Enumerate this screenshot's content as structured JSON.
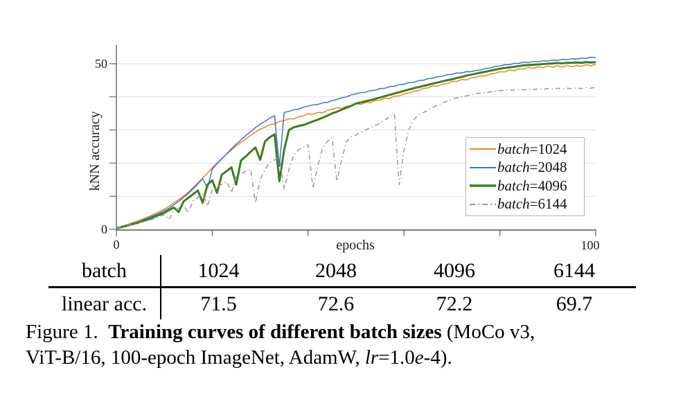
{
  "page": {
    "background": "#ffffff"
  },
  "chart_data": {
    "type": "line",
    "title": "",
    "xlabel": "epochs",
    "ylabel": "kNN accuracy",
    "xlim": [
      0,
      100
    ],
    "ylim": [
      0,
      55.5
    ],
    "x_ticks": [
      0,
      20,
      40,
      60,
      80,
      100
    ],
    "y_ticks": [
      0,
      10,
      20,
      30,
      40,
      50
    ],
    "x_tick_labels": [
      {
        "value": 0,
        "label": "0"
      },
      {
        "value": 100,
        "label": "100"
      }
    ],
    "y_tick_labels": [
      {
        "value": 0,
        "label": "0"
      },
      {
        "value": 50,
        "label": "50"
      }
    ],
    "grid": "horizontal",
    "legend_position": "lower-right-inside",
    "x_start": 0,
    "x_step": 1,
    "series": [
      {
        "name": "batch=1024",
        "color": "#E8861B",
        "width": 1.5,
        "dash": "solid",
        "values": [
          0.5,
          0.9,
          1.3,
          1.8,
          2.3,
          2.8,
          3.4,
          4.0,
          4.7,
          5.4,
          6.1,
          7.0,
          8.0,
          9.0,
          10.0,
          11.2,
          12.6,
          14.0,
          15.5,
          17.0,
          18.6,
          20.0,
          21.4,
          22.7,
          24.0,
          25.2,
          26.2,
          27.2,
          28.4,
          29.3,
          30.3,
          30.8,
          31.6,
          31.8,
          32.6,
          32.8,
          33.4,
          33.3,
          34.0,
          34.2,
          34.9,
          34.7,
          35.3,
          35.2,
          35.9,
          36.2,
          36.7,
          36.5,
          37.2,
          37.3,
          37.9,
          37.7,
          38.3,
          38.2,
          38.9,
          39.0,
          39.6,
          39.5,
          40.2,
          40.3,
          40.9,
          41.1,
          41.7,
          41.9,
          42.5,
          42.7,
          43.3,
          43.2,
          43.9,
          44.0,
          44.6,
          44.7,
          45.2,
          45.1,
          45.7,
          45.9,
          46.4,
          46.3,
          46.9,
          47.1,
          47.6,
          47.5,
          48.1,
          47.9,
          48.5,
          48.4,
          48.9,
          48.6,
          49.1,
          48.8,
          49.3,
          48.9,
          49.4,
          49.0,
          49.5,
          49.1,
          49.5,
          49.2,
          49.7,
          49.4,
          49.9
        ]
      },
      {
        "name": "batch=2048",
        "color": "#3A72D4",
        "width": 1.5,
        "dash": "solid",
        "values": [
          0.5,
          0.8,
          1.2,
          1.6,
          2.0,
          2.5,
          3.1,
          3.7,
          4.3,
          4.9,
          5.6,
          6.4,
          7.4,
          8.5,
          9.6,
          10.8,
          12.2,
          13.7,
          15.3,
          12.5,
          18.2,
          19.8,
          21.3,
          22.8,
          24.3,
          25.7,
          27.0,
          28.3,
          29.5,
          30.7,
          31.8,
          32.6,
          33.6,
          34.3,
          19.0,
          35.3,
          35.6,
          36.1,
          36.3,
          36.9,
          37.2,
          37.6,
          37.7,
          38.2,
          38.3,
          38.9,
          39.2,
          39.7,
          40.0,
          40.6,
          40.9,
          41.3,
          41.4,
          41.9,
          42.0,
          42.5,
          42.6,
          43.1,
          43.2,
          43.7,
          43.8,
          44.3,
          44.4,
          44.9,
          45.0,
          45.5,
          45.6,
          46.1,
          46.2,
          46.7,
          46.8,
          47.2,
          47.2,
          47.6,
          47.6,
          48.0,
          48.1,
          48.6,
          48.7,
          49.2,
          49.3,
          49.7,
          49.7,
          50.1,
          50.1,
          50.5,
          50.4,
          50.7,
          50.6,
          50.9,
          50.8,
          51.1,
          51.0,
          51.3,
          51.2,
          51.5,
          51.4,
          51.7,
          51.6,
          52.0,
          51.8
        ]
      },
      {
        "name": "batch=4096",
        "color": "#3D7D1E",
        "width": 3,
        "dash": "solid",
        "values": [
          0.3,
          0.6,
          1.0,
          1.4,
          1.8,
          2.2,
          2.7,
          3.2,
          3.8,
          4.4,
          5.0,
          5.8,
          6.6,
          5.2,
          8.4,
          9.5,
          10.6,
          11.7,
          8.0,
          13.5,
          14.8,
          11.0,
          16.5,
          17.6,
          18.7,
          13.5,
          20.8,
          22.0,
          23.4,
          24.7,
          21.0,
          26.5,
          27.8,
          28.7,
          14.5,
          24.0,
          30.0,
          30.8,
          31.2,
          31.5,
          32.0,
          32.6,
          33.1,
          33.7,
          34.3,
          35.0,
          35.5,
          36.1,
          36.7,
          37.3,
          38.0,
          38.3,
          38.7,
          39.0,
          39.4,
          39.8,
          40.2,
          40.6,
          41.0,
          41.4,
          41.8,
          42.2,
          42.6,
          42.9,
          43.3,
          43.6,
          44.0,
          44.3,
          44.7,
          45.0,
          45.3,
          45.7,
          46.0,
          46.4,
          46.7,
          47.0,
          47.3,
          47.6,
          47.9,
          48.2,
          48.5,
          48.7,
          48.9,
          49.1,
          49.3,
          49.5,
          49.6,
          49.7,
          49.8,
          49.9,
          50.0,
          50.1,
          50.2,
          50.1,
          50.3,
          50.3,
          50.4,
          50.3,
          50.5,
          50.4,
          50.5
        ]
      },
      {
        "name": "batch=6144",
        "color": "#999999",
        "width": 1.5,
        "dash": "dashdot",
        "values": [
          0.3,
          0.7,
          1.1,
          1.4,
          1.7,
          2.0,
          2.4,
          2.8,
          3.3,
          3.9,
          4.5,
          3.0,
          5.5,
          6.4,
          7.2,
          5.0,
          8.6,
          9.6,
          10.8,
          7.0,
          12.0,
          12.8,
          13.6,
          14.4,
          11.0,
          16.0,
          16.8,
          17.5,
          18.2,
          8.0,
          15.0,
          18.0,
          20.3,
          21.0,
          21.7,
          12.0,
          18.0,
          22.5,
          24.0,
          24.8,
          25.5,
          12.5,
          19.0,
          24.5,
          26.5,
          27.5,
          14.5,
          21.0,
          26.5,
          28.0,
          28.5,
          29.3,
          30.0,
          30.7,
          31.4,
          32.0,
          33.0,
          34.0,
          34.8,
          13.5,
          24.0,
          30.0,
          33.0,
          34.5,
          35.2,
          36.0,
          36.8,
          37.5,
          38.1,
          38.7,
          39.3,
          39.7,
          40.0,
          40.3,
          40.6,
          40.9,
          41.1,
          41.3,
          41.5,
          41.7,
          41.9,
          42.0,
          42.1,
          42.0,
          42.2,
          42.1,
          42.3,
          42.2,
          42.4,
          42.3,
          42.5,
          42.4,
          42.6,
          42.4,
          42.6,
          42.5,
          42.7,
          42.5,
          42.8,
          42.6,
          43.0
        ]
      }
    ]
  },
  "legend": {
    "border_color": "#b4b4b4",
    "background": "#ffffff"
  },
  "table": {
    "columns": [
      "batch",
      "1024",
      "2048",
      "4096",
      "6144"
    ],
    "rows": [
      [
        "linear acc.",
        "71.5",
        "72.6",
        "72.2",
        "69.7"
      ]
    ]
  },
  "caption": {
    "lines": [
      {
        "segments": [
          {
            "text": "Figure 1.  "
          },
          {
            "text": "Training curves of different batch sizes",
            "bold": true
          },
          {
            "text": " (MoCo v3,"
          }
        ]
      },
      {
        "segments": [
          {
            "text": "ViT-B/16, 100-epoch ImageNet, AdamW, "
          },
          {
            "text": "lr",
            "italic": true
          },
          {
            "text": "=1.0"
          },
          {
            "text": "e",
            "italic": true
          },
          {
            "text": "-4)."
          }
        ]
      }
    ]
  }
}
